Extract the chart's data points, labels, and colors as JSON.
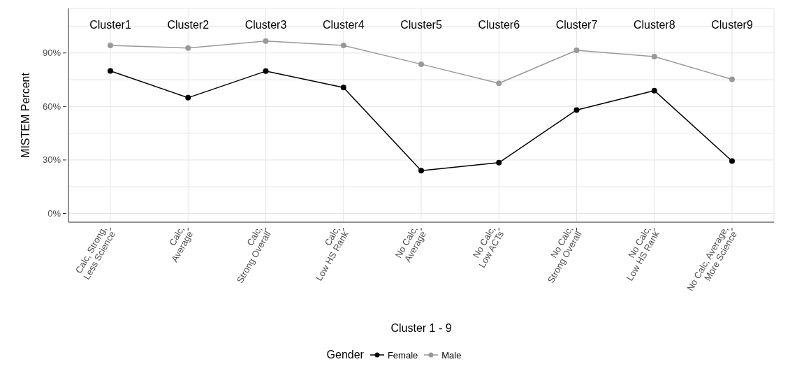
{
  "chart_data": {
    "type": "line",
    "xlabel": "Cluster 1 - 9",
    "ylabel": "MISTEM Percent",
    "legend_title": "Gender",
    "categories": [
      "Calc, Strong,\nLess Science",
      "Calc,\nAverage",
      "Calc,\nStrong Overall",
      "Calc,\nLow HS Rank",
      "No Calc,\nAverage",
      "No Calc,\nLow ACTs",
      "No Calc,\nStrong Overall",
      "No Calc,\nLow HS Rank",
      "No Calc, Average,\nMore Science"
    ],
    "series": [
      {
        "name": "Female",
        "color": "#000000",
        "values": [
          79.9,
          64.9,
          79.8,
          70.6,
          24.0,
          28.5,
          58.0,
          68.9,
          29.4
        ]
      },
      {
        "name": "Male",
        "color": "#999999",
        "values": [
          94.2,
          92.8,
          96.7,
          94.2,
          83.7,
          73.0,
          91.5,
          88.0,
          75.2
        ]
      }
    ],
    "ylim": [
      -4.9,
      115
    ],
    "yticks": [
      {
        "value": 0,
        "label": "0%"
      },
      {
        "value": 15,
        "label": null
      },
      {
        "value": 30,
        "label": "30%"
      },
      {
        "value": 45,
        "label": null
      },
      {
        "value": 60,
        "label": "60%"
      },
      {
        "value": 75,
        "label": null
      },
      {
        "value": 90,
        "label": "90%"
      },
      {
        "value": 105,
        "label": null
      }
    ],
    "annotations": [
      "Cluster1",
      "Cluster2",
      "Cluster3",
      "Cluster4",
      "Cluster5",
      "Cluster6",
      "Cluster7",
      "Cluster8",
      "Cluster9"
    ],
    "grid": true,
    "legend": "bottom",
    "marker": "circle",
    "line_style": "solid"
  }
}
